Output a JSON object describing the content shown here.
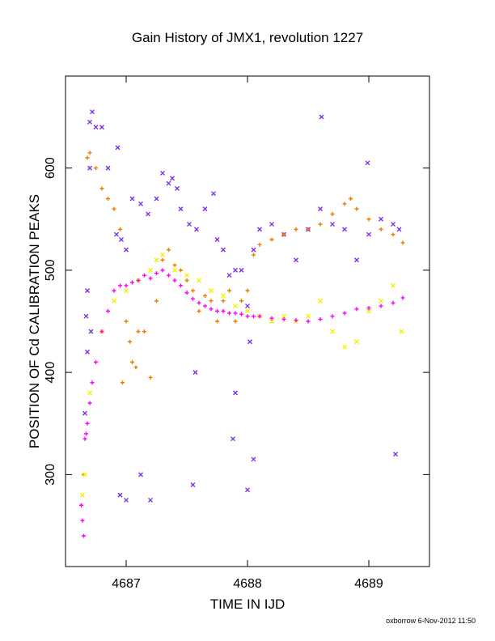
{
  "chart_data": {
    "type": "scatter",
    "title": "Gain History of JMX1, revolution 1227",
    "xlabel": "TIME IN IJD",
    "ylabel": "POSITION OF Cd CALIBRATION PEAKS",
    "xlim": [
      4686.5,
      4689.5
    ],
    "ylim": [
      210,
      690
    ],
    "xticks": [
      4687,
      4688,
      4689
    ],
    "xtick_labels": [
      "4687",
      "4688",
      "4689"
    ],
    "yticks": [
      300,
      400,
      500,
      600
    ],
    "ytick_labels": [
      "300",
      "400",
      "500",
      "600"
    ],
    "grid": false,
    "legend": "none",
    "credit": "oxborrow  6-Nov-2012 11:50",
    "series": [
      {
        "color": "#7b2ee6",
        "marker": "x",
        "x": [
          4686.67,
          4686.68,
          4686.7,
          4686.72,
          4686.75,
          4686.8,
          4686.85,
          4686.92,
          4686.96,
          4687.0,
          4687.05,
          4687.12,
          4687.18,
          4687.25,
          4687.3,
          4687.35,
          4687.38,
          4687.42,
          4687.45,
          4687.52,
          4687.58,
          4687.65,
          4687.72,
          4687.75,
          4687.8,
          4687.85,
          4687.9,
          4687.95,
          4688.0,
          4688.05,
          4688.1,
          4688.2,
          4688.3,
          4688.4,
          4688.5,
          4688.6,
          4688.7,
          4688.8,
          4688.9,
          4689.0,
          4689.1,
          4689.2,
          4689.25,
          4686.66,
          4686.95,
          4687.0,
          4687.12,
          4687.2,
          4687.55,
          4687.88,
          4688.0,
          4688.05,
          4689.22,
          4686.68,
          4686.71,
          4686.93,
          4688.61,
          4688.99,
          4686.7,
          4687.57,
          4687.9,
          4688.02
        ],
        "y": [
          455,
          420,
          645,
          655,
          640,
          640,
          600,
          535,
          530,
          520,
          570,
          565,
          555,
          570,
          595,
          585,
          590,
          580,
          560,
          545,
          540,
          560,
          575,
          530,
          520,
          495,
          500,
          500,
          465,
          520,
          540,
          545,
          535,
          510,
          540,
          560,
          545,
          540,
          510,
          535,
          550,
          545,
          540,
          360,
          280,
          275,
          300,
          275,
          290,
          335,
          285,
          315,
          320,
          480,
          440,
          620,
          650,
          605,
          600,
          400,
          380,
          430
        ]
      },
      {
        "color": "#f07c00",
        "marker": "+",
        "x": [
          4686.63,
          4686.65,
          4686.68,
          4686.7,
          4686.75,
          4686.8,
          4686.85,
          4686.9,
          4686.95,
          4686.97,
          4687.0,
          4687.03,
          4687.05,
          4687.08,
          4687.1,
          4687.15,
          4687.2,
          4687.25,
          4687.3,
          4687.35,
          4687.4,
          4687.45,
          4687.5,
          4687.55,
          4687.6,
          4687.65,
          4687.7,
          4687.75,
          4687.8,
          4687.85,
          4687.9,
          4687.95,
          4688.0,
          4688.05,
          4688.1,
          4688.2,
          4688.3,
          4688.4,
          4688.5,
          4688.6,
          4688.7,
          4688.8,
          4688.85,
          4688.9,
          4689.0,
          4689.1,
          4689.2,
          4689.28
        ],
        "y": [
          270,
          300,
          610,
          615,
          600,
          580,
          570,
          560,
          540,
          390,
          450,
          430,
          410,
          405,
          440,
          440,
          395,
          470,
          510,
          520,
          505,
          500,
          490,
          480,
          460,
          475,
          470,
          450,
          470,
          480,
          450,
          470,
          480,
          515,
          525,
          530,
          535,
          540,
          540,
          545,
          555,
          565,
          570,
          560,
          550,
          540,
          535,
          527
        ]
      },
      {
        "color": "#f5f000",
        "marker": "x",
        "x": [
          4686.64,
          4686.66,
          4686.7,
          4686.8,
          4686.9,
          4687.0,
          4687.1,
          4687.2,
          4687.25,
          4687.3,
          4687.4,
          4687.5,
          4687.6,
          4687.7,
          4687.8,
          4687.9,
          4688.0,
          4688.1,
          4688.2,
          4688.3,
          4688.4,
          4688.5,
          4688.6,
          4688.7,
          4688.8,
          4688.9,
          4689.0,
          4689.1,
          4689.2,
          4689.27
        ],
        "y": [
          280,
          300,
          380,
          440,
          470,
          480,
          490,
          500,
          510,
          515,
          500,
          495,
          490,
          480,
          475,
          465,
          460,
          455,
          450,
          455,
          450,
          455,
          470,
          440,
          425,
          430,
          460,
          470,
          485,
          440
        ]
      },
      {
        "color": "#ff00ff",
        "marker": "+",
        "x": [
          4686.63,
          4686.64,
          4686.65,
          4686.66,
          4686.67,
          4686.68,
          4686.7,
          4686.72,
          4686.75,
          4686.8,
          4686.85,
          4686.9,
          4686.95,
          4687.0,
          4687.05,
          4687.1,
          4687.15,
          4687.2,
          4687.25,
          4687.3,
          4687.35,
          4687.4,
          4687.45,
          4687.5,
          4687.55,
          4687.6,
          4687.65,
          4687.7,
          4687.75,
          4687.8,
          4687.85,
          4687.9,
          4687.95,
          4688.0,
          4688.05,
          4688.1,
          4688.2,
          4688.3,
          4688.4,
          4688.5,
          4688.6,
          4688.7,
          4688.8,
          4688.9,
          4689.0,
          4689.1,
          4689.2,
          4689.28
        ],
        "y": [
          270,
          255,
          240,
          335,
          340,
          350,
          370,
          390,
          410,
          440,
          460,
          480,
          485,
          485,
          488,
          490,
          495,
          492,
          497,
          500,
          495,
          490,
          485,
          478,
          472,
          468,
          465,
          462,
          460,
          460,
          458,
          458,
          457,
          455,
          455,
          455,
          453,
          452,
          451,
          450,
          452,
          455,
          458,
          462,
          463,
          465,
          468,
          473
        ]
      }
    ]
  }
}
